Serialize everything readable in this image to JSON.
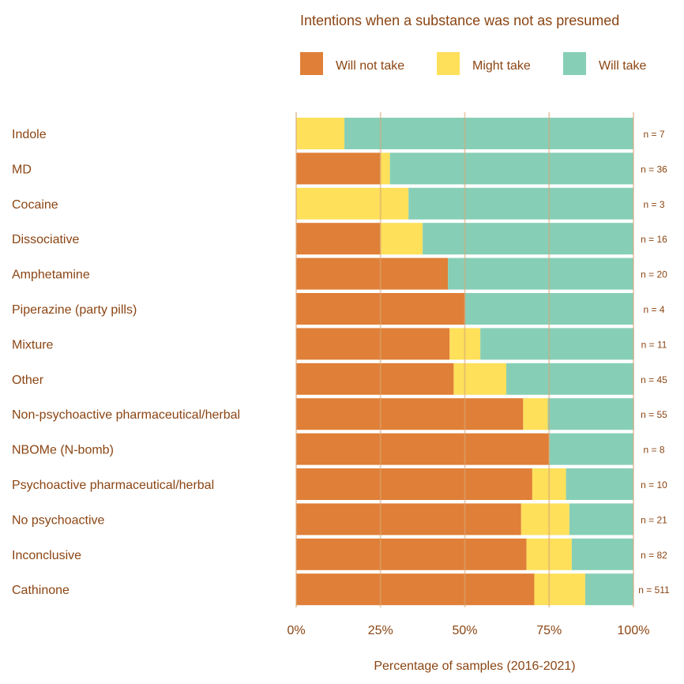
{
  "chart_data": {
    "type": "bar",
    "orientation": "horizontal",
    "stacked": true,
    "title": "Intentions when a substance was not as presumed",
    "xlabel": "Percentage of samples (2016-2021)",
    "ylabel": "",
    "xlim": [
      0,
      100
    ],
    "xticks": [
      "0%",
      "25%",
      "50%",
      "75%",
      "100%"
    ],
    "legend_position": "top",
    "grid": true,
    "categories": [
      "Indole",
      "MD",
      "Cocaine",
      "Dissociative",
      "Amphetamine",
      "Piperazine (party pills)",
      "Mixture",
      "Other",
      "Non-psychoactive pharmaceutical/herbal",
      "NBOMe (N-bomb)",
      "Psychoactive pharmaceutical/herbal",
      "No psychoactive",
      "Inconclusive",
      "Cathinone"
    ],
    "n_labels": [
      "n = 7",
      "n = 36",
      "n = 3",
      "n = 16",
      "n = 20",
      "n = 4",
      "n = 11",
      "n = 45",
      "n = 55",
      "n = 8",
      "n = 10",
      "n = 21",
      "n = 82",
      "n = 511"
    ],
    "series": [
      {
        "name": "Will not take",
        "color": "#E07F37",
        "values": [
          0,
          25,
          0,
          25,
          45,
          50,
          45.5,
          46.7,
          67.3,
          75,
          70,
          66.7,
          68.3,
          70.6
        ]
      },
      {
        "name": "Might take",
        "color": "#FEE05A",
        "values": [
          14.3,
          2.8,
          33.3,
          12.5,
          0,
          0,
          9.1,
          15.6,
          7.3,
          0,
          10,
          14.3,
          13.4,
          15.1
        ]
      },
      {
        "name": "Will take",
        "color": "#86CFB6",
        "values": [
          85.7,
          72.2,
          66.7,
          62.5,
          55,
          50,
          45.5,
          37.8,
          25.5,
          25,
          20,
          19,
          18.3,
          14.3
        ]
      }
    ]
  }
}
